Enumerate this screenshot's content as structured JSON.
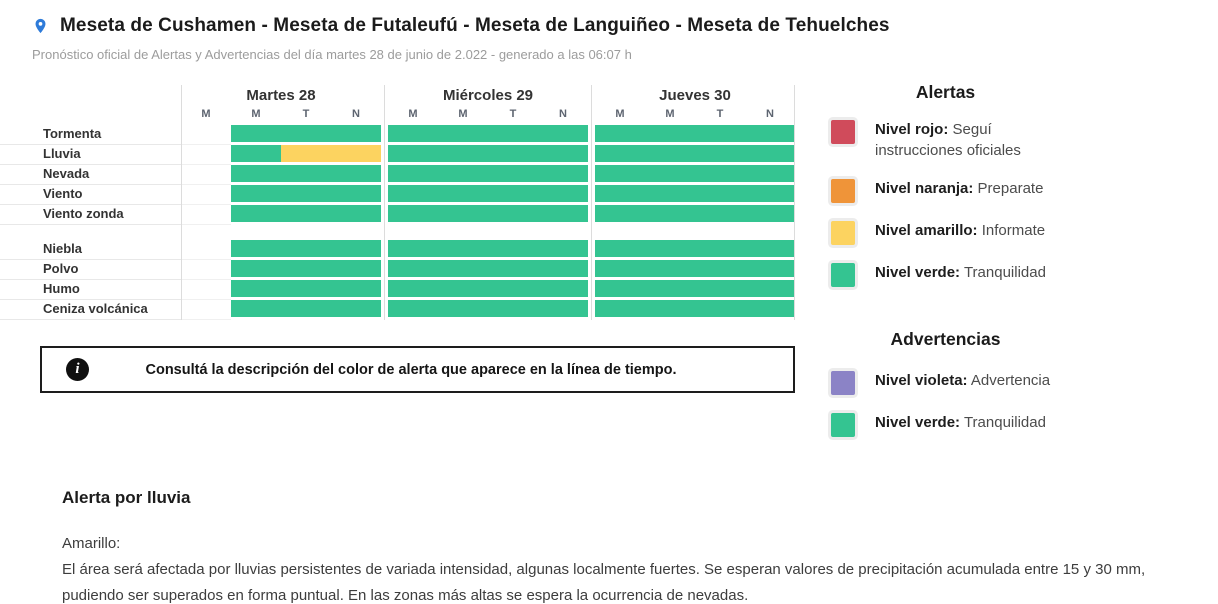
{
  "header": {
    "title": "Meseta de Cushamen - Meseta de Futaleufú - Meseta de Languiñeo - Meseta de Tehuelches",
    "subtitle": "Pronóstico oficial de Alertas y Advertencias del día martes 28 de junio de 2.022 - generado a las 06:07 h"
  },
  "colors": {
    "green": "#34C491",
    "yellow": "#FCD360",
    "red": "#D04B5B",
    "orange": "#EF9439",
    "violet": "#8B83C6",
    "pin_blue": "#2E7BD9"
  },
  "timeline": {
    "days": [
      {
        "label": "Martes 28",
        "periods": [
          "M",
          "M",
          "T",
          "N"
        ]
      },
      {
        "label": "Miércoles 29",
        "periods": [
          "M",
          "M",
          "T",
          "N"
        ]
      },
      {
        "label": "Jueves 30",
        "periods": [
          "M",
          "M",
          "T",
          "N"
        ]
      }
    ],
    "row_groups": [
      {
        "rows": [
          {
            "label": "Tormenta",
            "cells": [
              "empty",
              "green",
              "green",
              "green",
              "green",
              "green",
              "green",
              "green",
              "green",
              "green",
              "green",
              "green"
            ]
          },
          {
            "label": "Lluvia",
            "cells": [
              "empty",
              "green",
              "yellow",
              "yellow",
              "green",
              "green",
              "green",
              "green",
              "green",
              "green",
              "green",
              "green"
            ]
          },
          {
            "label": "Nevada",
            "cells": [
              "empty",
              "green",
              "green",
              "green",
              "green",
              "green",
              "green",
              "green",
              "green",
              "green",
              "green",
              "green"
            ]
          },
          {
            "label": "Viento",
            "cells": [
              "empty",
              "green",
              "green",
              "green",
              "green",
              "green",
              "green",
              "green",
              "green",
              "green",
              "green",
              "green"
            ]
          },
          {
            "label": "Viento zonda",
            "cells": [
              "empty",
              "green",
              "green",
              "green",
              "green",
              "green",
              "green",
              "green",
              "green",
              "green",
              "green",
              "green"
            ]
          }
        ]
      },
      {
        "rows": [
          {
            "label": "Niebla",
            "cells": [
              "empty",
              "green",
              "green",
              "green",
              "green",
              "green",
              "green",
              "green",
              "green",
              "green",
              "green",
              "green"
            ]
          },
          {
            "label": "Polvo",
            "cells": [
              "empty",
              "green",
              "green",
              "green",
              "green",
              "green",
              "green",
              "green",
              "green",
              "green",
              "green",
              "green"
            ]
          },
          {
            "label": "Humo",
            "cells": [
              "empty",
              "green",
              "green",
              "green",
              "green",
              "green",
              "green",
              "green",
              "green",
              "green",
              "green",
              "green"
            ]
          },
          {
            "label": "Ceniza volcánica",
            "cells": [
              "empty",
              "green",
              "green",
              "green",
              "green",
              "green",
              "green",
              "green",
              "green",
              "green",
              "green",
              "green"
            ]
          }
        ]
      }
    ]
  },
  "info_box": {
    "icon_glyph": "i",
    "text": "Consultá la descripción del color de alerta que aparece en la línea de tiempo."
  },
  "legend": {
    "alerts": {
      "title": "Alertas",
      "items": [
        {
          "color": "red",
          "label": "Nivel rojo:",
          "description": "Seguí instrucciones oficiales"
        },
        {
          "color": "orange",
          "label": "Nivel naranja:",
          "description": "Preparate"
        },
        {
          "color": "yellow",
          "label": "Nivel amarillo:",
          "description": "Informate"
        },
        {
          "color": "green",
          "label": "Nivel verde:",
          "description": "Tranquilidad"
        }
      ]
    },
    "advisories": {
      "title": "Advertencias",
      "items": [
        {
          "color": "violet",
          "label": "Nivel violeta:",
          "description": "Advertencia"
        },
        {
          "color": "green",
          "label": "Nivel verde:",
          "description": "Tranquilidad"
        }
      ]
    }
  },
  "alert_detail": {
    "title": "Alerta por lluvia",
    "level": "Amarillo:",
    "description": "El área será afectada por lluvias persistentes de variada intensidad, algunas localmente fuertes. Se esperan valores de precipitación acumulada entre 15 y 30 mm, pudiendo ser superados en forma puntual. En las zonas más altas se espera la ocurrencia de nevadas."
  }
}
